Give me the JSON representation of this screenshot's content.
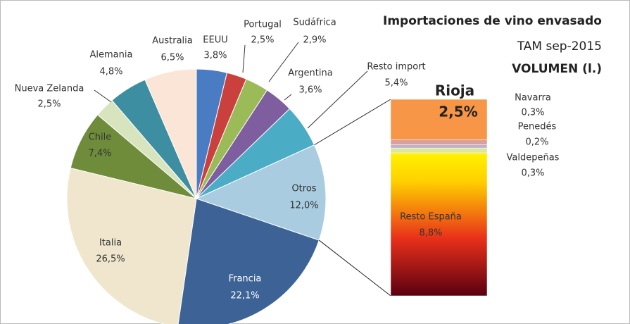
{
  "chart_data": {
    "type": "bar-of-pie",
    "title": "Importaciones de vino envasado",
    "subtitles": [
      "TAM sep-2015",
      "VOLUMEN (l.)"
    ],
    "categories": [
      "EEUU",
      "Portugal",
      "Sudáfrica",
      "Argentina",
      "Resto import",
      "Otros",
      "Francia",
      "Italia",
      "Chile",
      "Nueva Zelanda",
      "Alemania",
      "Australia"
    ],
    "values": [
      3.8,
      2.5,
      2.9,
      3.6,
      5.4,
      12.0,
      22.1,
      26.5,
      7.4,
      2.5,
      4.8,
      6.5
    ],
    "value_labels": [
      "3,8%",
      "2,5%",
      "2,9%",
      "3,6%",
      "5,4%",
      "12,0%",
      "22,1%",
      "26,5%",
      "7,4%",
      "2,5%",
      "4,8%",
      "6,5%"
    ],
    "colors": [
      "#4a7cc4",
      "#c9403c",
      "#9bbb59",
      "#7f5ea0",
      "#4bacc6",
      "#a9cce0",
      "#3d6396",
      "#efe6cd",
      "#6e8c3a",
      "#d7e4bd",
      "#3c8ea0",
      "#fbe5d6"
    ],
    "bar_categories": [
      "Rioja",
      "Navarra",
      "Penedés",
      "Valdepeñas",
      "Resto España"
    ],
    "bar_values": [
      2.5,
      0.3,
      0.2,
      0.3,
      8.8
    ],
    "bar_value_labels": [
      "2,5%",
      "0,3%",
      "0,2%",
      "0,3%",
      "8,8%"
    ],
    "bar_colors": [
      "#f79646",
      "#d9a0a0",
      "#c0b0c8",
      "#dce6a0",
      "#e8301a"
    ]
  }
}
